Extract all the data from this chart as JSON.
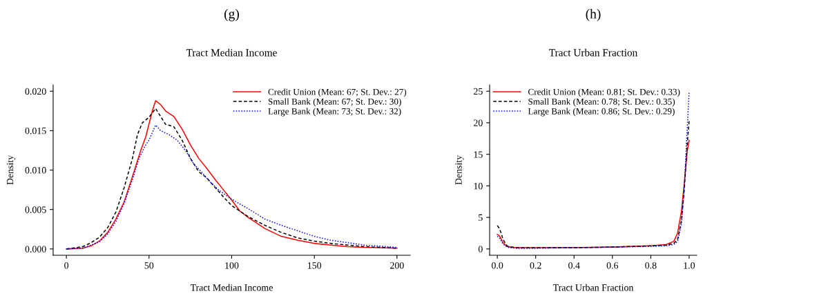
{
  "chart_data": [
    {
      "type": "line",
      "title": "Tract Median Income",
      "annotations": [
        "(g)"
      ],
      "xlabel": "Tract Median Income",
      "ylabel": "Density",
      "xlim": [
        -8,
        208
      ],
      "xticks": [
        0,
        50,
        100,
        150,
        200
      ],
      "ylim": [
        -0.0008,
        0.0208
      ],
      "yticks": [
        {
          "value": 0,
          "label": "0.000"
        },
        {
          "value": 0.005,
          "label": "0.005"
        },
        {
          "value": 0.01,
          "label": "0.010"
        },
        {
          "value": 0.015,
          "label": "0.015"
        },
        {
          "value": 0.02,
          "label": "0.020"
        }
      ],
      "legend": "top right",
      "grid": false,
      "series": [
        {
          "name": "Credit Union (Mean: 67; St. Dev.: 27)",
          "color": "#ff0000",
          "line_style": "solid",
          "x": [
            0,
            10,
            15,
            20,
            25,
            30,
            35,
            40,
            45,
            48,
            52,
            54,
            57,
            60,
            65,
            70,
            75,
            80,
            85,
            90,
            95,
            100,
            105,
            110,
            120,
            130,
            140,
            150,
            160,
            170,
            180,
            200
          ],
          "values": [
            0,
            0.0001,
            0.0004,
            0.001,
            0.0021,
            0.0038,
            0.006,
            0.0092,
            0.0125,
            0.0142,
            0.0175,
            0.0188,
            0.0183,
            0.0175,
            0.0168,
            0.0152,
            0.0132,
            0.0115,
            0.0102,
            0.0088,
            0.0075,
            0.0062,
            0.0048,
            0.004,
            0.0026,
            0.0016,
            0.0011,
            0.0007,
            0.0005,
            0.0003,
            0.0002,
            0.0001
          ]
        },
        {
          "name": "Small Bank (Mean: 67; St. Dev.: 30)",
          "color": "#000000",
          "line_style": "dashed",
          "x": [
            0,
            10,
            15,
            20,
            25,
            30,
            35,
            40,
            43,
            46,
            50,
            54,
            57,
            60,
            65,
            70,
            75,
            80,
            85,
            90,
            95,
            100,
            110,
            120,
            130,
            140,
            150,
            160,
            170,
            180,
            200
          ],
          "values": [
            0,
            0.0003,
            0.0008,
            0.0015,
            0.0027,
            0.0047,
            0.0078,
            0.0115,
            0.0145,
            0.016,
            0.0167,
            0.0178,
            0.0168,
            0.0158,
            0.0155,
            0.0138,
            0.0115,
            0.0098,
            0.009,
            0.0078,
            0.0066,
            0.0055,
            0.0041,
            0.003,
            0.0021,
            0.0014,
            0.001,
            0.0007,
            0.0005,
            0.0003,
            0.0001
          ]
        },
        {
          "name": "Large Bank (Mean: 73; St. Dev.: 32)",
          "color": "#0000ff",
          "line_style": "dotted",
          "x": [
            0,
            10,
            20,
            25,
            30,
            35,
            40,
            44,
            48,
            50,
            54,
            57,
            62,
            67,
            72,
            77,
            82,
            87,
            92,
            100,
            110,
            120,
            130,
            140,
            150,
            160,
            170,
            180,
            200
          ],
          "values": [
            0,
            0.0001,
            0.0009,
            0.0019,
            0.0035,
            0.0058,
            0.0088,
            0.0115,
            0.0132,
            0.0138,
            0.0157,
            0.015,
            0.0145,
            0.0138,
            0.0125,
            0.0108,
            0.0097,
            0.0085,
            0.0075,
            0.0063,
            0.0051,
            0.0038,
            0.003,
            0.0023,
            0.0016,
            0.0011,
            0.0008,
            0.0005,
            0.0002
          ]
        }
      ]
    },
    {
      "type": "line",
      "title": "Tract Urban Fraction",
      "annotations": [
        "(h)"
      ],
      "xlabel": "Tract Urban Fraction",
      "ylabel": "Density",
      "xlim": [
        -0.04,
        1.04
      ],
      "xticks": [
        {
          "value": 0,
          "label": "0.0"
        },
        {
          "value": 0.2,
          "label": "0.2"
        },
        {
          "value": 0.4,
          "label": "0.4"
        },
        {
          "value": 0.6,
          "label": "0.6"
        },
        {
          "value": 0.8,
          "label": "0.8"
        },
        {
          "value": 1,
          "label": "1.0"
        }
      ],
      "ylim": [
        -1,
        26
      ],
      "yticks": [
        0,
        5,
        10,
        15,
        20,
        25
      ],
      "legend": "top left",
      "grid": false,
      "series": [
        {
          "name": "Credit Union (Mean: 0.81; St. Dev.: 0.33)",
          "color": "#ff0000",
          "line_style": "solid",
          "x": [
            0,
            0.01,
            0.02,
            0.03,
            0.05,
            0.07,
            0.1,
            0.2,
            0.4,
            0.6,
            0.8,
            0.88,
            0.92,
            0.94,
            0.96,
            0.975,
            0.99,
            1.0
          ],
          "values": [
            2.3,
            2.1,
            1.6,
            1.0,
            0.4,
            0.3,
            0.2,
            0.2,
            0.2,
            0.3,
            0.5,
            0.7,
            1.2,
            2.5,
            6,
            10.5,
            15.5,
            17.2
          ]
        },
        {
          "name": "Small Bank (Mean: 0.78; St. Dev.: 0.35)",
          "color": "#000000",
          "line_style": "dashed",
          "x": [
            0,
            0.01,
            0.02,
            0.03,
            0.05,
            0.07,
            0.1,
            0.2,
            0.4,
            0.6,
            0.8,
            0.88,
            0.92,
            0.94,
            0.96,
            0.975,
            0.99,
            1.0
          ],
          "values": [
            3.7,
            3.3,
            2.5,
            1.5,
            0.5,
            0.3,
            0.2,
            0.2,
            0.2,
            0.3,
            0.5,
            0.6,
            0.9,
            1.5,
            4.5,
            9.5,
            16.5,
            20.3
          ]
        },
        {
          "name": "Large Bank (Mean: 0.86; St. Dev.: 0.29)",
          "color": "#0000ff",
          "line_style": "dotted",
          "x": [
            0,
            0.01,
            0.02,
            0.03,
            0.05,
            0.07,
            0.1,
            0.2,
            0.4,
            0.6,
            0.8,
            0.88,
            0.92,
            0.94,
            0.96,
            0.975,
            0.99,
            1.0
          ],
          "values": [
            2.0,
            1.8,
            1.3,
            0.8,
            0.3,
            0.2,
            0.1,
            0.1,
            0.2,
            0.3,
            0.4,
            0.5,
            0.7,
            1.2,
            4,
            10,
            19,
            25
          ]
        }
      ]
    }
  ]
}
